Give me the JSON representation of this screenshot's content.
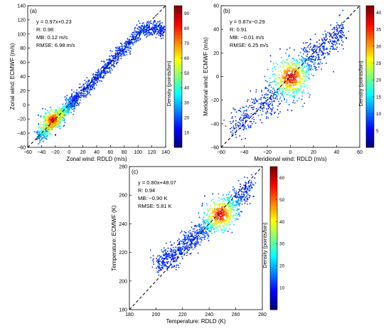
{
  "chart_data": [
    {
      "type": "scatter",
      "panel": "(a)",
      "xlabel": "Zonal wind: RDLD (m/s)",
      "ylabel": "Zonal wind: ECMWF (m/s)",
      "xlim": [
        -60,
        140
      ],
      "ylim": [
        -60,
        140
      ],
      "xticks": [
        -60,
        -40,
        -20,
        0,
        20,
        40,
        60,
        80,
        100,
        120,
        140
      ],
      "yticks": [
        -60,
        -40,
        -20,
        0,
        20,
        40,
        60,
        80,
        100,
        120,
        140
      ],
      "stats": [
        "y = 0.97x+0.23",
        "R: 0.98",
        "MB: 0.12 m/s",
        "RMSE: 6.98 m/s"
      ],
      "fit": {
        "slope": 0.97,
        "intercept": 0.23
      },
      "reference_line": "1:1 dashed",
      "colorbar": {
        "label": "Density (points/bin)",
        "range": [
          0,
          95
        ],
        "ticks": [
          10,
          20,
          30,
          40,
          50,
          60,
          70,
          80,
          90
        ]
      },
      "density_core": [
        -25,
        -20
      ],
      "spread": 5,
      "points": [
        [
          -45,
          -45
        ],
        [
          -40,
          -39
        ],
        [
          -35,
          -35
        ],
        [
          -30,
          -29
        ],
        [
          -25,
          -25
        ],
        [
          -20,
          -19
        ],
        [
          -15,
          -14
        ],
        [
          -10,
          -10
        ],
        [
          -5,
          -5
        ],
        [
          0,
          1
        ],
        [
          5,
          6
        ],
        [
          10,
          10
        ],
        [
          20,
          21
        ],
        [
          30,
          30
        ],
        [
          40,
          39
        ],
        [
          50,
          52
        ],
        [
          60,
          58
        ],
        [
          70,
          72
        ],
        [
          80,
          80
        ],
        [
          90,
          92
        ],
        [
          100,
          103
        ],
        [
          110,
          108
        ],
        [
          120,
          110
        ],
        [
          130,
          108
        ],
        [
          135,
          104
        ]
      ]
    },
    {
      "type": "scatter",
      "panel": "(b)",
      "xlabel": "Meridional wind: RDLD (m/s)",
      "ylabel": "Meridional wind: ECMWF (m/s)",
      "xlim": [
        -60,
        60
      ],
      "ylim": [
        -60,
        60
      ],
      "xticks": [
        -60,
        -40,
        -20,
        0,
        20,
        40,
        60
      ],
      "yticks": [
        -60,
        -40,
        -20,
        0,
        20,
        40,
        60
      ],
      "stats": [
        "y = 0.87x−0.29",
        "R: 0.91",
        "MB: −0.01 m/s",
        "RMSE: 6.25 m/s"
      ],
      "fit": {
        "slope": 0.87,
        "intercept": -0.29
      },
      "reference_line": "1:1 dashed",
      "colorbar": {
        "label": "Density (points/bin)",
        "range": [
          0,
          42
        ],
        "ticks": [
          5,
          10,
          15,
          20,
          25,
          30,
          35,
          40
        ]
      },
      "density_core": [
        0,
        0
      ],
      "spread": 6,
      "points": [
        [
          -50,
          -42
        ],
        [
          -40,
          -35
        ],
        [
          -30,
          -27
        ],
        [
          -20,
          -18
        ],
        [
          -10,
          -9
        ],
        [
          0,
          0
        ],
        [
          10,
          9
        ],
        [
          20,
          17
        ],
        [
          30,
          26
        ],
        [
          40,
          35
        ],
        [
          45,
          40
        ],
        [
          -20,
          -30
        ],
        [
          15,
          25
        ],
        [
          5,
          -15
        ],
        [
          -5,
          12
        ]
      ]
    },
    {
      "type": "scatter",
      "panel": "(c)",
      "xlabel": "Temperature: RDLD (K)",
      "ylabel": "Temperature: ECMWF (K)",
      "xlim": [
        180,
        280
      ],
      "ylim": [
        180,
        280
      ],
      "xticks": [
        180,
        200,
        220,
        240,
        260,
        280
      ],
      "yticks": [
        180,
        200,
        220,
        240,
        260,
        280
      ],
      "stats": [
        "y = 0.80x+48.07",
        "R: 0.94",
        "MB: −0.90 K",
        "RMSE: 5.81 K"
      ],
      "fit": {
        "slope": 0.8,
        "intercept": 48.07
      },
      "reference_line": "1:1 dashed",
      "colorbar": {
        "label": "Density (points/bin)",
        "range": [
          0,
          65
        ],
        "ticks": [
          10,
          20,
          30,
          40,
          50,
          60
        ]
      },
      "density_core": [
        248,
        247
      ],
      "spread": 4,
      "points": [
        [
          200,
          212
        ],
        [
          205,
          215
        ],
        [
          210,
          216
        ],
        [
          215,
          220
        ],
        [
          220,
          224
        ],
        [
          225,
          228
        ],
        [
          230,
          232
        ],
        [
          235,
          236
        ],
        [
          240,
          240
        ],
        [
          245,
          244
        ],
        [
          250,
          248
        ],
        [
          255,
          252
        ],
        [
          260,
          256
        ],
        [
          265,
          261
        ],
        [
          270,
          266
        ]
      ]
    }
  ]
}
